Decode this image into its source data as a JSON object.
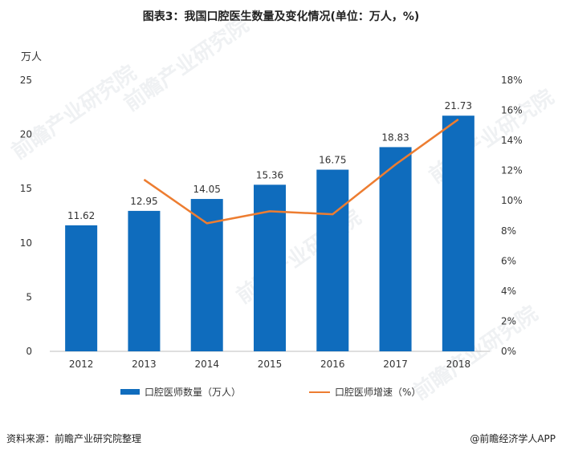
{
  "title": "图表3：我国口腔医生数量及变化情况(单位：万人，%)",
  "left_unit": "万人",
  "footer": {
    "source": "资料来源：前瞻产业研究院整理",
    "brand": "@前瞻经济学人APP"
  },
  "watermark": "前瞻产业研究院",
  "colors": {
    "bar": "#0f6cbd",
    "line": "#ed7d31"
  },
  "chart_data": {
    "type": "bar",
    "categories": [
      "2012",
      "2013",
      "2014",
      "2015",
      "2016",
      "2017",
      "2018"
    ],
    "series": [
      {
        "name": "口腔医师数量（万人）",
        "type": "bar",
        "axis": "left",
        "values": [
          11.62,
          12.95,
          14.05,
          15.36,
          16.75,
          18.83,
          21.73
        ],
        "labels": [
          "11.62",
          "12.95",
          "14.05",
          "15.36",
          "16.75",
          "18.83",
          "21.73"
        ]
      },
      {
        "name": "口腔医师增速（%）",
        "type": "line",
        "axis": "right",
        "values": [
          null,
          11.4,
          8.5,
          9.3,
          9.1,
          12.4,
          15.4
        ]
      }
    ],
    "ylim_left": [
      0,
      25
    ],
    "yticks_left": [
      "0",
      "5",
      "10",
      "15",
      "20",
      "25"
    ],
    "ylim_right": [
      0,
      18
    ],
    "yticks_right": [
      "0%",
      "2%",
      "4%",
      "6%",
      "8%",
      "10%",
      "12%",
      "14%",
      "16%",
      "18%"
    ],
    "grid": false,
    "legend": "bottom"
  }
}
